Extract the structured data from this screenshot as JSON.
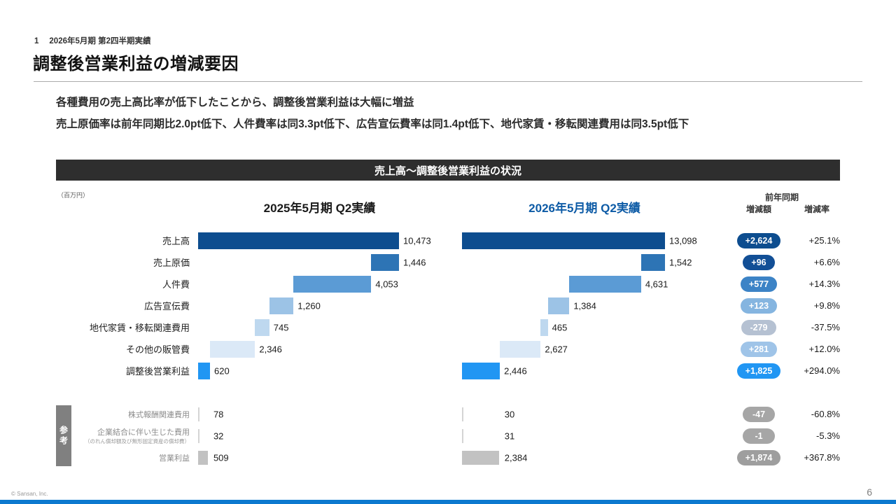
{
  "slide": {
    "kicker_number": "1",
    "kicker_text": "2026年5月期 第2四半期実績",
    "title": "調整後営業利益の増減要因",
    "lead_lines": [
      "各種費用の売上高比率が低下したことから、調整後営業利益は大幅に増益",
      "売上原価率は前年同期比2.0pt低下、人件費率は同3.3pt低下、広告宣伝費率は同1.4pt低下、地代家賃・移転関連費用は同3.5pt低下"
    ],
    "banner_title": "売上高〜調整後営業利益の状況",
    "banner_bg": "#2e2e2e",
    "unit_note": "（百万円）",
    "reference_tag": "参考",
    "copyright": "© Sansan, Inc.",
    "page_number": "6",
    "accent_color": "#0c79cf"
  },
  "chart_data": {
    "type": "bar",
    "subtype": "horizontal-waterfall-comparison",
    "unit": "百万円",
    "columns": [
      {
        "id": "fy2025",
        "label": "2025年5月期 Q2実績",
        "total": 10473,
        "header_color": "#1a1a1a"
      },
      {
        "id": "fy2026",
        "label": "2026年5月期 Q2実績",
        "total": 13098,
        "header_color": "#0d5ba6"
      }
    ],
    "delta_header": {
      "line1": "前年同期",
      "amount_label": "増減額",
      "rate_label": "増減率"
    },
    "rows": [
      {
        "label": "売上高",
        "fy2025": {
          "value": 10473,
          "display": "10,473"
        },
        "fy2026": {
          "value": 13098,
          "display": "13,098"
        },
        "delta": "+2,624",
        "rate": "+25.1%",
        "bar_color": "#0d4d8f",
        "badge_color": "#0d4d8f"
      },
      {
        "label": "売上原価",
        "fy2025": {
          "value": 1446,
          "display": "1,446"
        },
        "fy2026": {
          "value": 1542,
          "display": "1,542"
        },
        "delta": "+96",
        "rate": "+6.6%",
        "bar_color": "#2d74b5",
        "badge_color": "#124f96"
      },
      {
        "label": "人件費",
        "fy2025": {
          "value": 4053,
          "display": "4,053"
        },
        "fy2026": {
          "value": 4631,
          "display": "4,631"
        },
        "delta": "+577",
        "rate": "+14.3%",
        "bar_color": "#5b9bd5",
        "badge_color": "#3c83c6"
      },
      {
        "label": "広告宣伝費",
        "fy2025": {
          "value": 1260,
          "display": "1,260"
        },
        "fy2026": {
          "value": 1384,
          "display": "1,384"
        },
        "delta": "+123",
        "rate": "+9.8%",
        "bar_color": "#9cc3e6",
        "badge_color": "#85b5e0"
      },
      {
        "label": "地代家賃・移転関連費用",
        "fy2025": {
          "value": 745,
          "display": "745"
        },
        "fy2026": {
          "value": 465,
          "display": "465"
        },
        "delta": "-279",
        "rate": "-37.5%",
        "bar_color": "#bed8ef",
        "badge_color": "#b5c1d2"
      },
      {
        "label": "その他の販管費",
        "fy2025": {
          "value": 2346,
          "display": "2,346"
        },
        "fy2026": {
          "value": 2627,
          "display": "2,627"
        },
        "delta": "+281",
        "rate": "+12.0%",
        "bar_color": "#dbe9f7",
        "badge_color": "#9fc4e8"
      },
      {
        "label": "調整後営業利益",
        "fy2025": {
          "value": 620,
          "display": "620"
        },
        "fy2026": {
          "value": 2446,
          "display": "2,446"
        },
        "delta": "+1,825",
        "rate": "+294.0%",
        "bar_color": "#2196f3",
        "badge_color": "#2196f3"
      }
    ],
    "reference_rows": [
      {
        "label": "株式報酬関連費用",
        "sub_label": "",
        "fy2025": {
          "value": 78,
          "display": "78"
        },
        "fy2026": {
          "value": 30,
          "display": "30"
        },
        "delta": "-47",
        "rate": "-60.8%",
        "bar_color": "#d4d4d4",
        "badge_color": "#a6a6a6"
      },
      {
        "label": "企業結合に伴い生じた費用",
        "sub_label": "（のれん償却額及び無形固定資産の償却費）",
        "fy2025": {
          "value": 32,
          "display": "32"
        },
        "fy2026": {
          "value": 31,
          "display": "31"
        },
        "delta": "-1",
        "rate": "-5.3%",
        "bar_color": "#d4d4d4",
        "badge_color": "#a6a6a6"
      },
      {
        "label": "営業利益",
        "sub_label": "",
        "fy2025": {
          "value": 509,
          "display": "509"
        },
        "fy2026": {
          "value": 2384,
          "display": "2,384"
        },
        "delta": "+1,874",
        "rate": "+367.8%",
        "bar_color": "#c2c2c2",
        "badge_color": "#9e9e9e"
      }
    ]
  }
}
